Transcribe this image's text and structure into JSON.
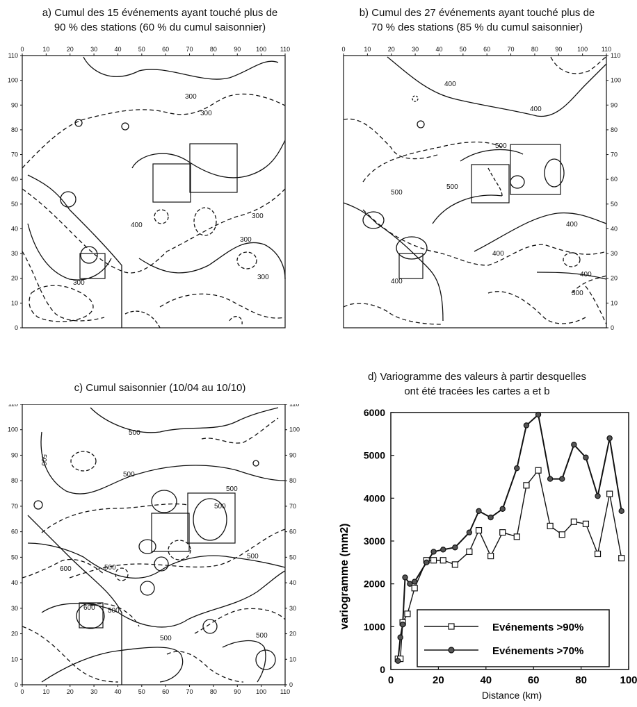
{
  "panels": {
    "a": {
      "title_line1": "a) Cumul des 15 événements ayant touché plus de",
      "title_line2": "90 % des stations (60 % du cumul saisonnier)",
      "contour_labels": [
        "300",
        "300",
        "400",
        "300",
        "300",
        "300",
        "300"
      ]
    },
    "b": {
      "title_line1": "b) Cumul des 27 événements ayant touché plus de",
      "title_line2": "70 % des stations (85 % du cumul saisonnier)",
      "contour_labels": [
        "400",
        "400",
        "500",
        "500",
        "500",
        "400",
        "400",
        "400",
        "300",
        "400"
      ]
    },
    "c": {
      "title_line1": "c) Cumul saisonnier (10/04 au 10/10)",
      "contour_labels": [
        "500",
        "500",
        "500",
        "500",
        "500",
        "500",
        "500",
        "600",
        "600",
        "500",
        "500",
        "500"
      ]
    },
    "d": {
      "title_line1": "d) Variogramme des valeurs à partir desquelles",
      "title_line2": "ont été tracées les cartes a et b"
    }
  },
  "map_ticks": [
    "0",
    "10",
    "20",
    "30",
    "40",
    "50",
    "60",
    "70",
    "80",
    "90",
    "100",
    "110"
  ],
  "chart_data": {
    "type": "line",
    "title": "d) Variogramme des valeurs à partir desquelles ont été tracées les cartes a et b",
    "xlabel": "Distance (km)",
    "ylabel": "variogramme  (mm2)",
    "xlim": [
      0,
      100
    ],
    "ylim": [
      0,
      6000
    ],
    "x_ticks": [
      "0",
      "20",
      "40",
      "60",
      "80",
      "100"
    ],
    "y_ticks": [
      "0",
      "1000",
      "2000",
      "3000",
      "4000",
      "5000",
      "6000"
    ],
    "legend_position": "bottom-right",
    "series": [
      {
        "name": "Evénements >90%",
        "marker": "square",
        "x": [
          3,
          4,
          5,
          7,
          10,
          15,
          18,
          22,
          27,
          33,
          37,
          42,
          47,
          53,
          57,
          62,
          67,
          72,
          77,
          82,
          87,
          92,
          97
        ],
        "y": [
          250,
          250,
          1100,
          1300,
          1900,
          2550,
          2550,
          2550,
          2450,
          2750,
          3250,
          2650,
          3200,
          3100,
          4300,
          4650,
          3350,
          3150,
          3450,
          3400,
          2700,
          4100,
          2600
        ]
      },
      {
        "name": "Evénements >70%",
        "marker": "circle",
        "x": [
          3,
          4,
          5,
          6,
          8,
          10,
          15,
          18,
          22,
          27,
          33,
          37,
          42,
          47,
          53,
          57,
          62,
          67,
          72,
          77,
          82,
          87,
          92,
          97
        ],
        "y": [
          200,
          750,
          1050,
          2150,
          2000,
          2050,
          2500,
          2750,
          2800,
          2850,
          3200,
          3700,
          3550,
          3750,
          4700,
          5700,
          5950,
          4450,
          4450,
          5250,
          4950,
          4050,
          5400,
          3700
        ]
      }
    ]
  }
}
